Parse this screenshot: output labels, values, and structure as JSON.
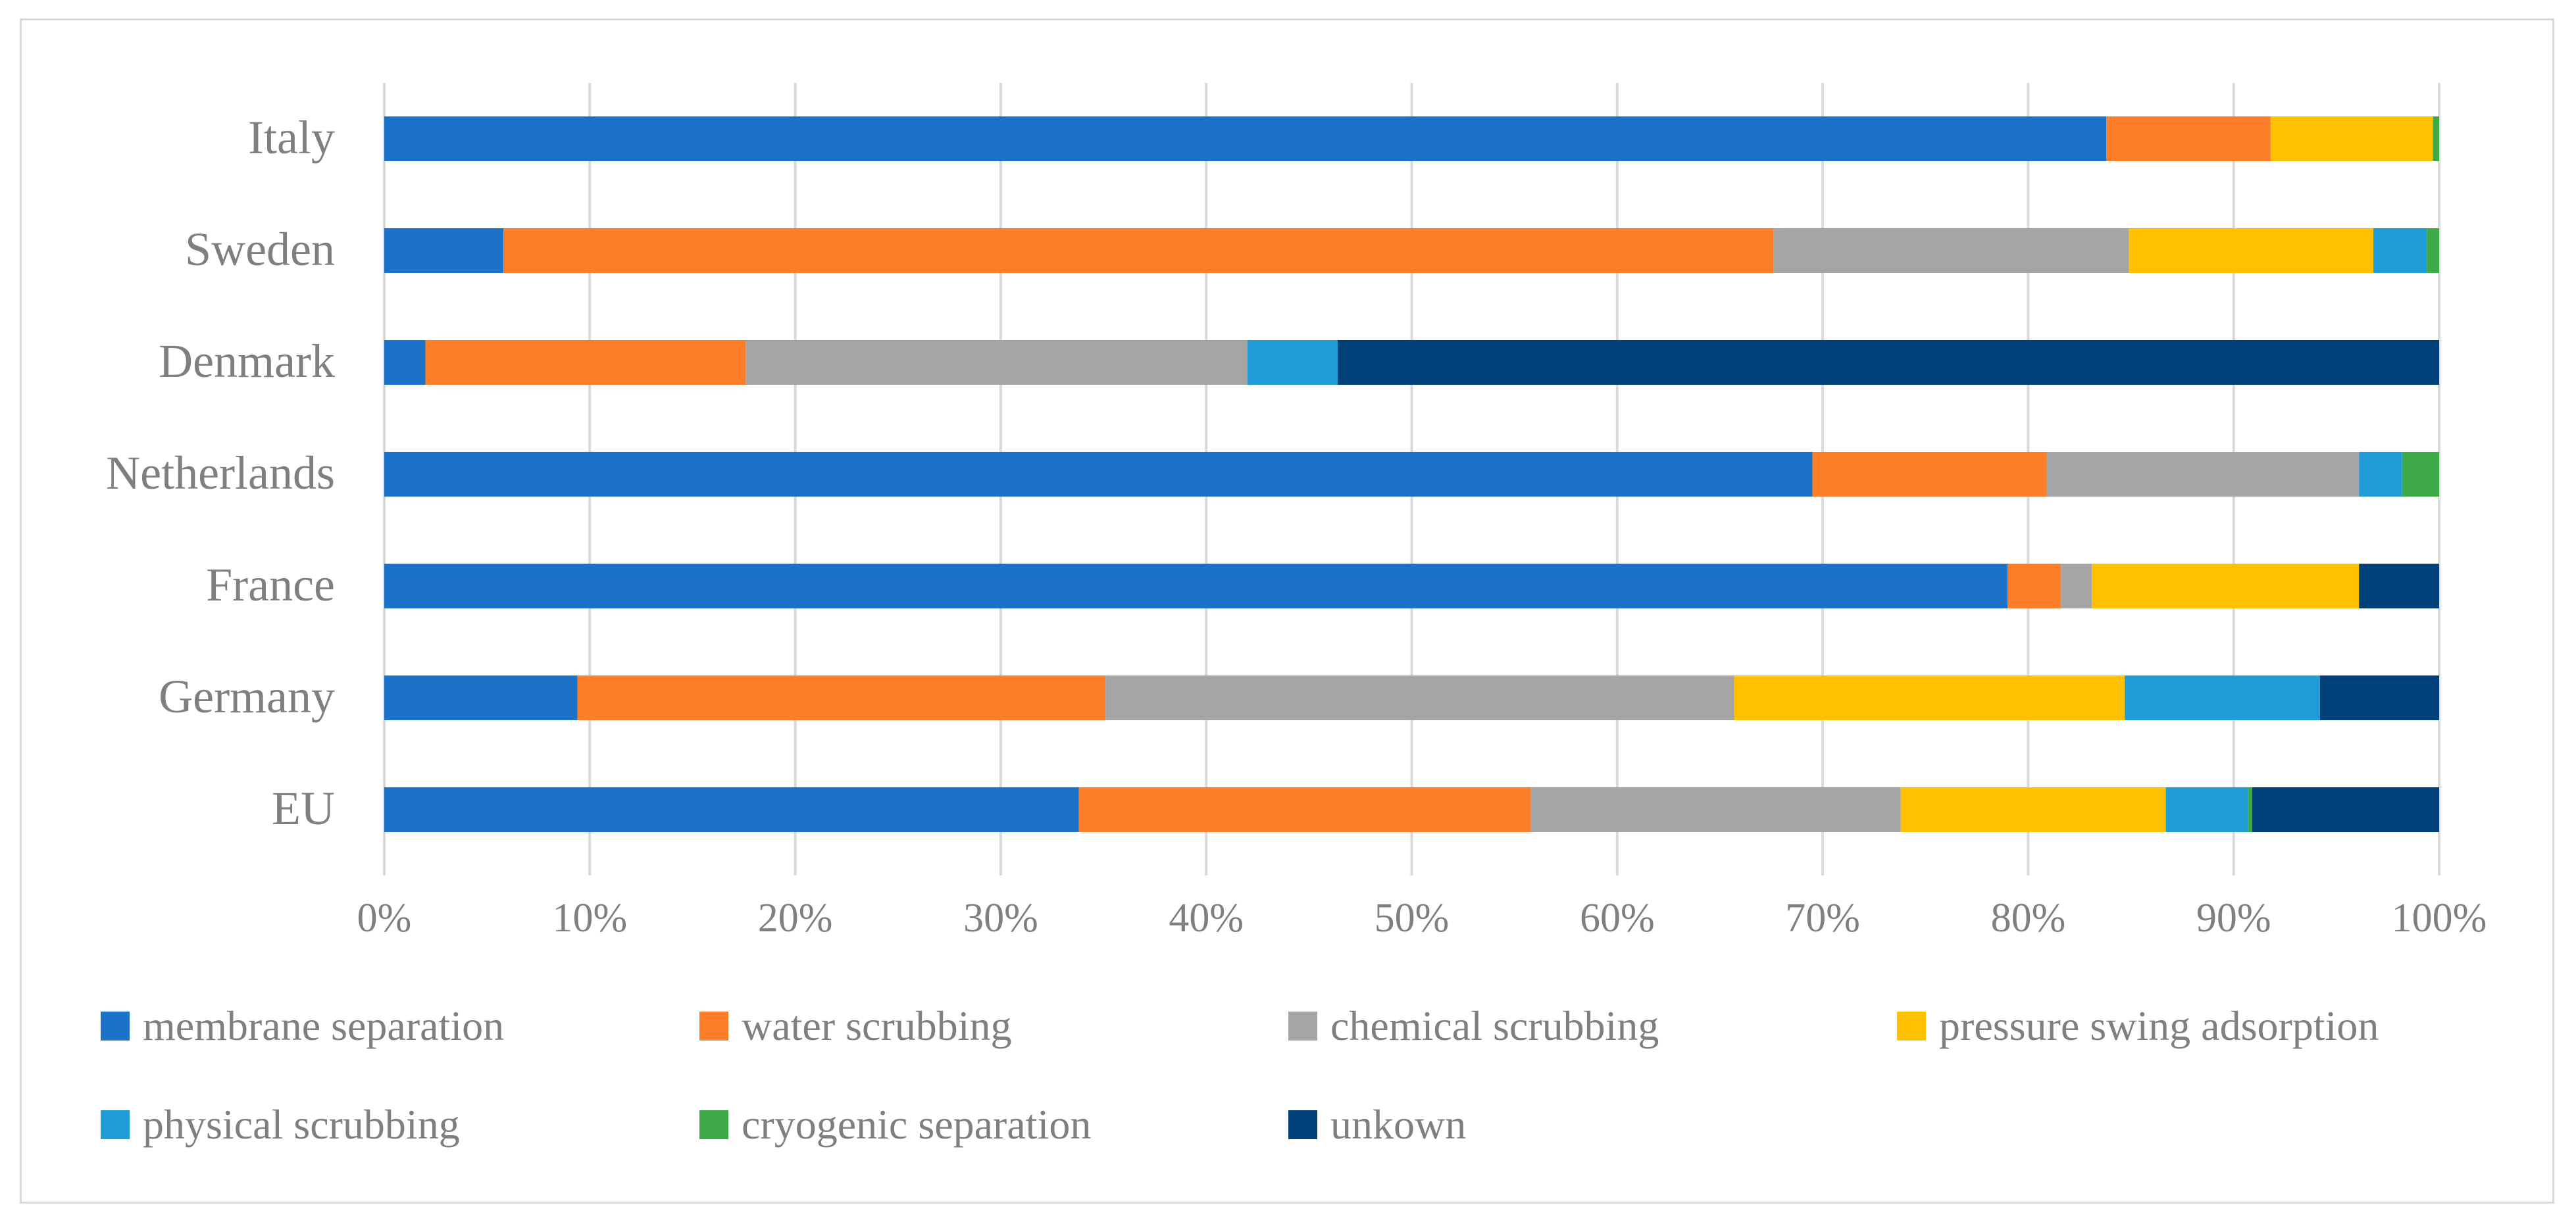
{
  "chart_data": {
    "type": "bar",
    "orientation": "horizontal",
    "stacked": "percent",
    "title": "",
    "xlabel": "",
    "ylabel": "",
    "xlim": [
      0,
      100
    ],
    "grid": true,
    "legend_position": "bottom",
    "x_ticks": [
      "0%",
      "10%",
      "20%",
      "30%",
      "40%",
      "50%",
      "60%",
      "70%",
      "80%",
      "90%",
      "100%"
    ],
    "categories": [
      "Italy",
      "Sweden",
      "Denmark",
      "Netherlands",
      "France",
      "Germany",
      "EU"
    ],
    "series": [
      {
        "name": "membrane separation",
        "color": "#1a73c8",
        "values": [
          83.8,
          5.8,
          2.0,
          69.5,
          79.0,
          9.4,
          33.8
        ]
      },
      {
        "name": "water scrubbing",
        "color": "#fd7e28",
        "values": [
          8.0,
          61.8,
          15.6,
          11.4,
          2.6,
          25.7,
          22.0
        ]
      },
      {
        "name": "chemical scrubbing",
        "color": "#a5a5a5",
        "values": [
          0.0,
          17.3,
          24.4,
          15.2,
          1.5,
          30.6,
          18.0
        ]
      },
      {
        "name": "pressure swing adsorption",
        "color": "#ffc000",
        "values": [
          7.9,
          11.9,
          0.0,
          0.0,
          13.0,
          19.0,
          12.9
        ]
      },
      {
        "name": "physical scrubbing",
        "color": "#1f9bd8",
        "values": [
          0.0,
          2.6,
          4.4,
          2.1,
          0.0,
          9.5,
          4.0
        ]
      },
      {
        "name": "cryogenic separation",
        "color": "#3daa47",
        "values": [
          0.3,
          0.6,
          0.0,
          1.8,
          0.0,
          0.0,
          0.2
        ]
      },
      {
        "name": "unkown",
        "color": "#00417a",
        "values": [
          0.0,
          0.0,
          53.6,
          0.0,
          3.9,
          5.8,
          9.1
        ]
      }
    ]
  }
}
